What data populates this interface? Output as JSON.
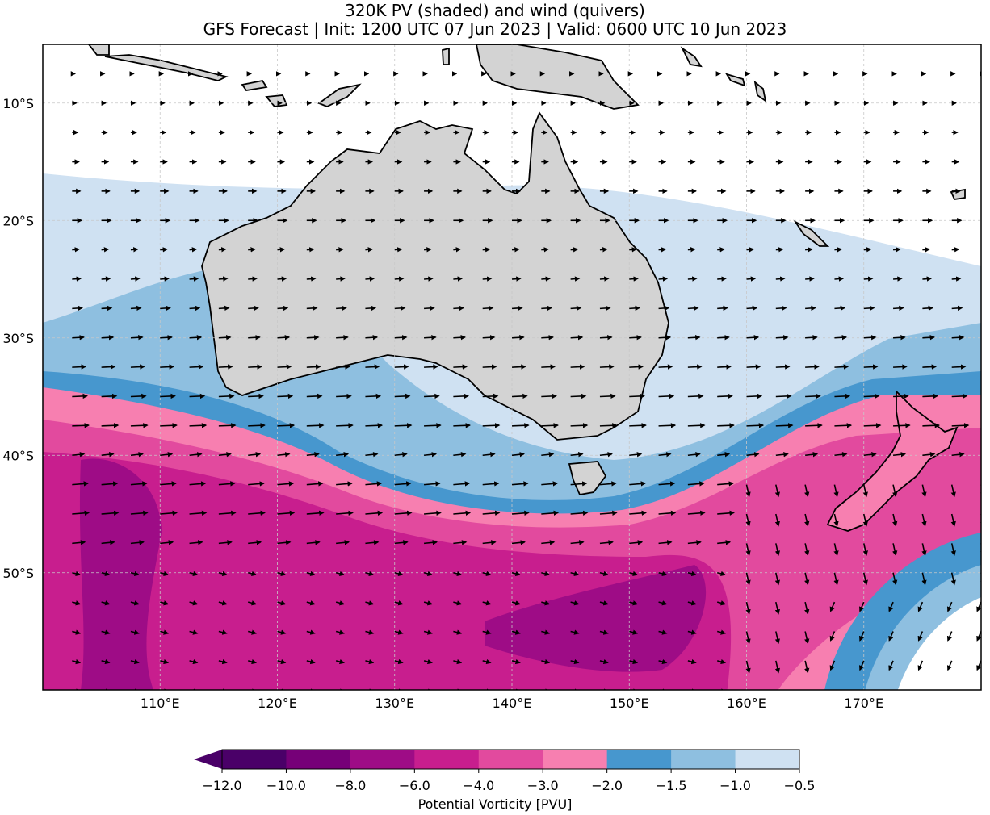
{
  "title_line1": "320K PV (shaded) and wind (quivers)",
  "title_line2": "GFS Forecast | Init: 1200 UTC 07 Jun 2023 | Valid: 0600 UTC 10 Jun 2023",
  "map": {
    "lon_ticks": [
      "110°E",
      "120°E",
      "130°E",
      "140°E",
      "150°E",
      "160°E",
      "170°E"
    ],
    "lat_ticks": [
      "10°S",
      "20°S",
      "30°S",
      "40°S",
      "50°S"
    ],
    "colors": {
      "land": "#d3d3d3",
      "frame": "#000000",
      "grid": "#c8c8c8",
      "arrows": "#000000"
    }
  },
  "colorbar": {
    "label": "Potential Vorticity [PVU]",
    "extend": "min",
    "ticks": [
      "−12.0",
      "−10.0",
      "−8.0",
      "−6.0",
      "−4.0",
      "−3.0",
      "−2.0",
      "−1.5",
      "−1.0",
      "−0.5"
    ],
    "colors": [
      "#4a0068",
      "#760078",
      "#9e0c86",
      "#c81e8e",
      "#e24a9e",
      "#f77fb0",
      "#4797ce",
      "#8ebfe0",
      "#cfe1f2"
    ]
  }
}
